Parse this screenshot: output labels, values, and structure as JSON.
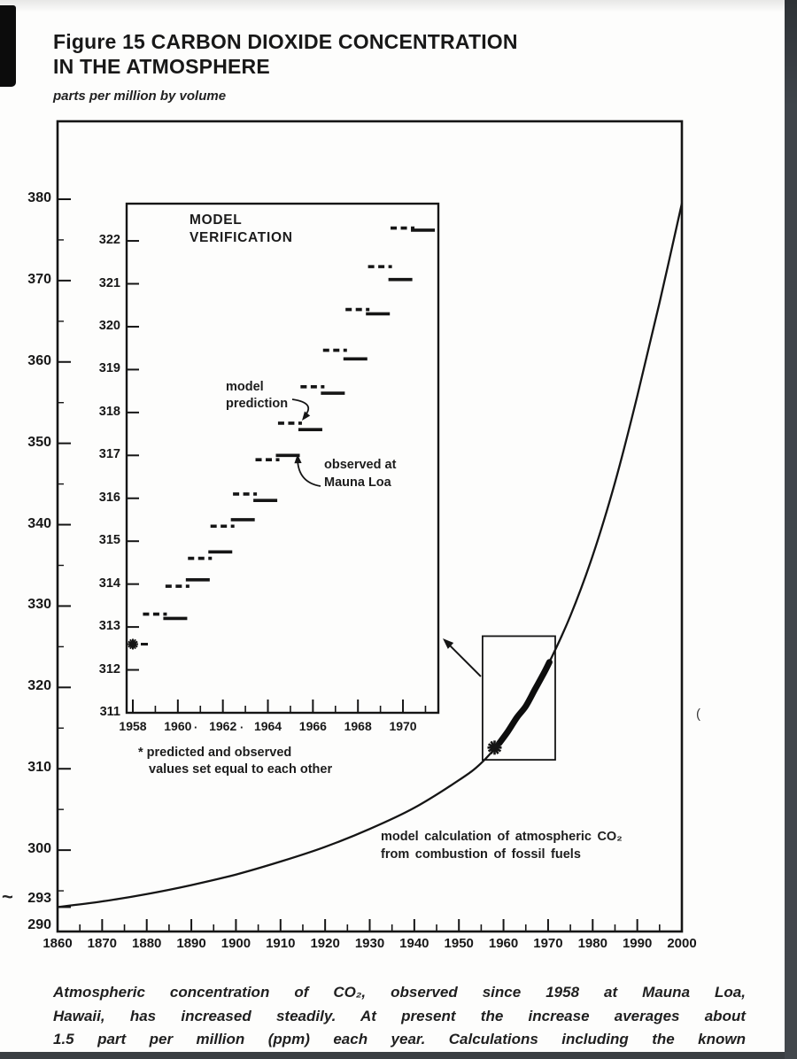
{
  "page": {
    "title_line1": "Figure 15 CARBON DIOXIDE CONCENTRATION",
    "title_line2": "IN THE ATMOSPHERE",
    "units_label": "parts per million by volume",
    "caption_lines": [
      "Atmospheric concentration of CO₂, observed since 1958 at Mauna Loa,",
      "Hawaii, has increased steadily. At present the increase averages about",
      "1.5 part per million (ppm) each year. Calculations including the known"
    ],
    "handwritten_mark": "~",
    "scan_artifact": "(",
    "scan_dot": "·",
    "ink_color": "#1b1b1b"
  },
  "chart_data": [
    {
      "id": "main-co2-curve",
      "type": "line",
      "title": "Figure 15 CARBON DIOXIDE CONCENTRATION IN THE ATMOSPHERE",
      "ylabel": "parts per million by volume",
      "xlabel": "",
      "grid": false,
      "xlim": [
        1860,
        2000
      ],
      "ylim": [
        290,
        388
      ],
      "x_ticks": [
        1860,
        1870,
        1880,
        1890,
        1900,
        1910,
        1920,
        1930,
        1940,
        1950,
        1960,
        1970,
        1980,
        1990,
        2000
      ],
      "x_minor_tick_interval": 5,
      "y_ticks": [
        293,
        300,
        310,
        320,
        330,
        340,
        350,
        360,
        370,
        380
      ],
      "y_minor_ticks": [
        295,
        305,
        315,
        325,
        335,
        345,
        355,
        365,
        375
      ],
      "y_axis_extra_label": 290,
      "series": [
        {
          "name": "model calculation of atmospheric CO₂ from combustion of fossil fuels",
          "style": "solid-thin",
          "x": [
            1860,
            1870,
            1880,
            1890,
            1900,
            1910,
            1920,
            1930,
            1940,
            1950,
            1955,
            1960,
            1965,
            1970,
            1975,
            1980,
            1985,
            1990,
            1995,
            2000
          ],
          "y": [
            293,
            293.7,
            294.6,
            295.7,
            297,
            298.6,
            300.4,
            302.6,
            305.2,
            308.6,
            310.7,
            313.8,
            317.7,
            322.8,
            328.8,
            336.2,
            345.2,
            355.8,
            367.3,
            379.5
          ]
        },
        {
          "name": "observed record overlay (bold segment, 1959–1970)",
          "style": "solid-thick",
          "x": [
            1959,
            1961,
            1963,
            1965,
            1967,
            1969,
            1970.3
          ],
          "y": [
            313.1,
            314.6,
            316.3,
            317.7,
            319.7,
            321.7,
            323.1
          ]
        }
      ],
      "marker": {
        "symbol": "✱",
        "x": 1958,
        "y": 312.6
      },
      "zoom_box": {
        "x0": 1955.3,
        "x1": 1971.6,
        "y0": 311.1,
        "y1": 326.3
      },
      "annotation_line1": "model calculation of atmospheric CO₂",
      "annotation_line2": "from combustion of fossil fuels"
    },
    {
      "id": "model-verification-inset",
      "type": "line",
      "title_line1": "MODEL",
      "title_line2": "VERIFICATION",
      "grid": false,
      "xlim": [
        1957.7,
        1971.6
      ],
      "ylim": [
        311,
        322.9
      ],
      "x_ticks": [
        1958,
        1960,
        1962,
        1964,
        1966,
        1968,
        1970
      ],
      "x_minor_ticks": [
        1959,
        1961,
        1963,
        1965,
        1967,
        1969,
        1971
      ],
      "y_ticks": [
        311,
        312,
        313,
        314,
        315,
        316,
        317,
        318,
        319,
        320,
        321,
        322
      ],
      "categories": [
        1958,
        1959,
        1960,
        1961,
        1962,
        1963,
        1964,
        1965,
        1966,
        1967,
        1968,
        1969,
        1970
      ],
      "series": [
        {
          "name": "model prediction",
          "style": "dashed",
          "values": [
            312.6,
            313.3,
            313.95,
            314.6,
            315.35,
            316.1,
            316.9,
            317.75,
            318.6,
            319.45,
            320.4,
            321.4,
            322.3
          ]
        },
        {
          "name": "observed at Mauna Loa",
          "style": "solid",
          "values": [
            312.6,
            313.2,
            314.1,
            314.75,
            315.5,
            315.95,
            317.0,
            317.6,
            318.45,
            319.25,
            320.3,
            321.1,
            322.25
          ]
        }
      ],
      "label_model_line1": "model",
      "label_model_line2": "prediction",
      "label_observed_line1": "observed at",
      "label_observed_line2": "Mauna Loa",
      "footnote_line1": "* predicted and observed",
      "footnote_line2": "values set equal to each other",
      "start_marker": "✱"
    }
  ]
}
